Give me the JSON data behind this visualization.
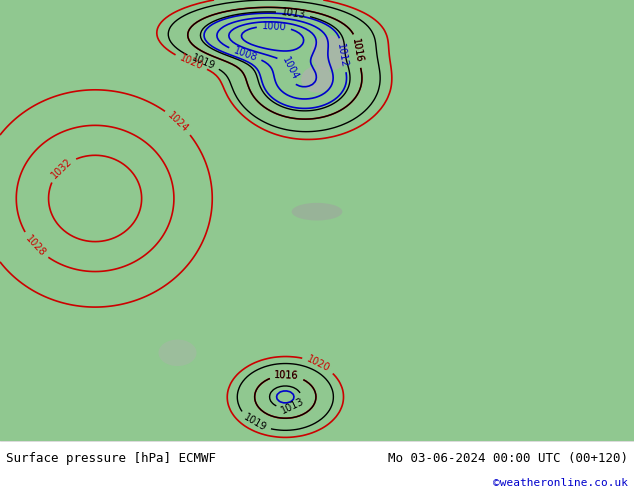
{
  "title_left": "Surface pressure [hPa] ECMWF",
  "title_right": "Mo 03-06-2024 00:00 UTC (00+120)",
  "credit": "©weatheronline.co.uk",
  "credit_color": "#0000cc",
  "bg_color": "#a8d8a8",
  "land_color": "#90c890",
  "sea_color": "#c8e8f0",
  "fig_width": 6.34,
  "fig_height": 4.9,
  "dpi": 100,
  "bottom_bar_color": "#ffffff",
  "bottom_text_color": "#000000",
  "bottom_bar_height": 0.1,
  "map_bg_green": "#8fbc8f",
  "map_bg_gray": "#b0b0b0",
  "contour_red_color": "#cc0000",
  "contour_blue_color": "#0000cc",
  "contour_black_color": "#000000",
  "font_size_labels": 9,
  "font_size_bottom": 9,
  "font_size_credit": 8
}
